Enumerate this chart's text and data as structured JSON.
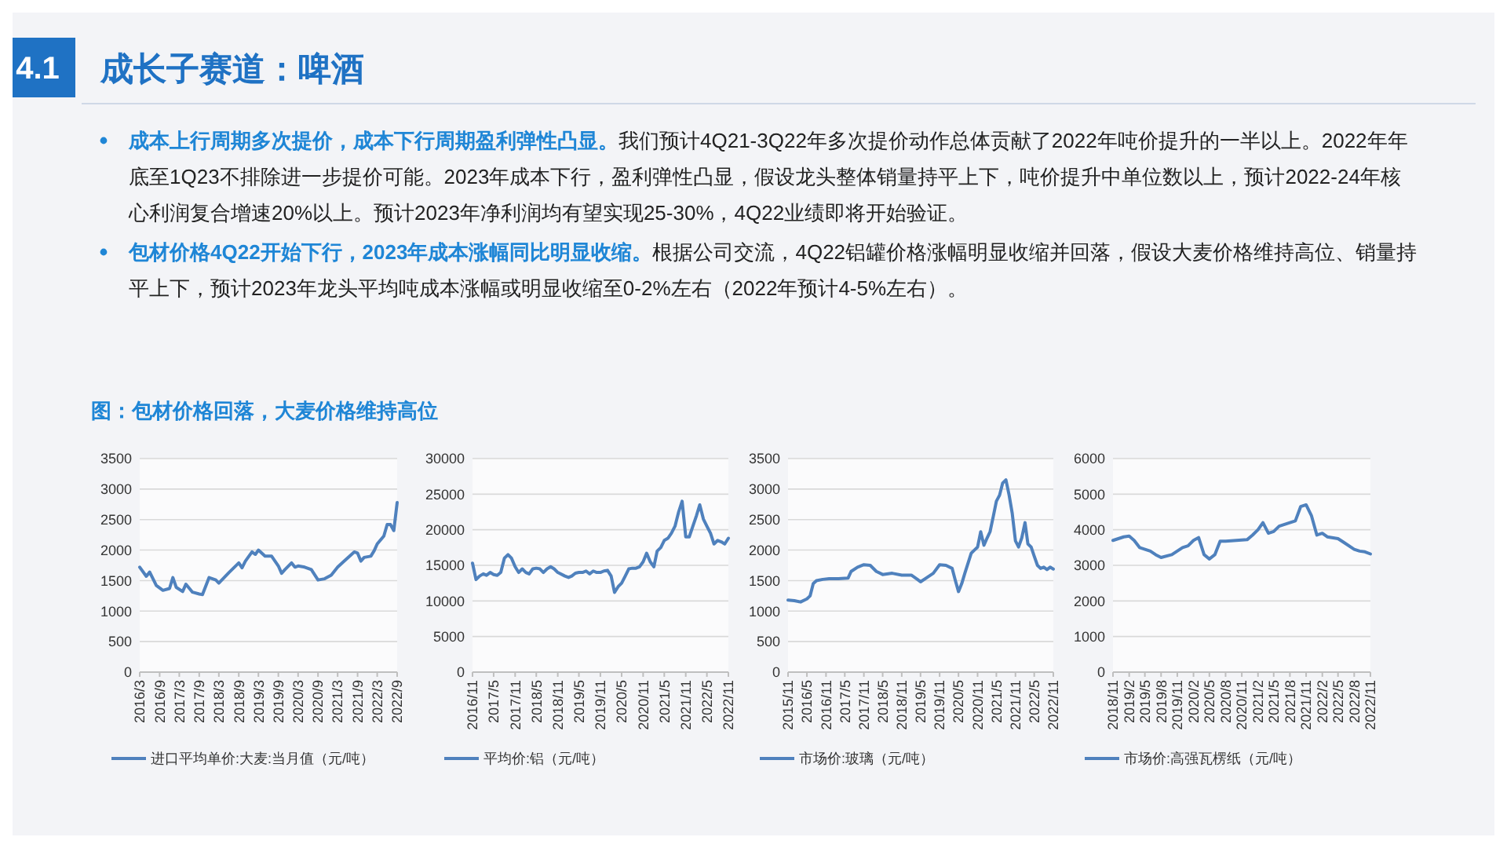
{
  "chart_data": [
    {
      "type": "other",
      "title": "成长子赛道：啤酒",
      "annotations": [
        "4.1",
        "成本上行周期多次提价，成本下行周期盈利弹性凸显。",
        "我们预计4Q21-3Q22年多次提价动作总体贡献了2022年吨价提升的一半以上。2022年年底至1Q23不排除进一步提价可能。2023年成本下行，盈利弹性凸显，假设龙头整体销量持平上下，吨价提升中单位数以上，预计2022-24年核心利润复合增速20%以上。预计2023年净利润均有望实现25-30%，4Q22业绩即将开始验证。",
        "包材价格4Q22开始下行，2023年成本涨幅同比明显收缩。",
        "根据公司交流，4Q22铝罐价格涨幅明显收缩并回落，假设大麦价格维持高位、销量持平上下，预计2023年龙头平均吨成本涨幅或明显收缩至0-2%左右（2022年预计4-5%左右）。",
        "图：包材价格回落，大麦价格维持高位"
      ]
    },
    {
      "type": "line",
      "x": [
        "2016-03",
        "2016-05",
        "2016-06",
        "2016-08",
        "2016-10",
        "2016-12",
        "2017-01",
        "2017-02",
        "2017-04",
        "2017-05",
        "2017-07",
        "2017-09",
        "2017-10",
        "2017-12",
        "2018-02",
        "2018-03",
        "2018-06",
        "2018-09",
        "2018-10",
        "2018-11",
        "2019-01",
        "2019-02",
        "2019-03",
        "2019-05",
        "2019-07",
        "2019-09",
        "2019-10",
        "2019-11",
        "2020-01",
        "2020-02",
        "2020-03",
        "2020-05",
        "2020-07",
        "2020-09",
        "2020-11",
        "2021-01",
        "2021-03",
        "2021-05",
        "2021-08",
        "2021-09",
        "2021-10",
        "2021-11",
        "2022-01",
        "2022-02",
        "2022-03",
        "2022-05",
        "2022-06",
        "2022-07",
        "2022-08",
        "2022-09"
      ],
      "series": [
        {
          "name": "进口平均单价:大麦:当月值（元/吨）",
          "color": "#4f81bd",
          "values": [
            1720,
            1570,
            1640,
            1420,
            1340,
            1370,
            1550,
            1390,
            1320,
            1440,
            1310,
            1280,
            1270,
            1550,
            1510,
            1460,
            1630,
            1790,
            1710,
            1820,
            1970,
            1930,
            2000,
            1900,
            1900,
            1740,
            1620,
            1680,
            1790,
            1720,
            1740,
            1720,
            1680,
            1510,
            1530,
            1590,
            1720,
            1820,
            1970,
            1950,
            1820,
            1880,
            1900,
            1990,
            2100,
            2230,
            2420,
            2420,
            2320,
            2780
          ]
        }
      ],
      "xlim": [
        "2016-03",
        "2022-09"
      ],
      "xticks": [
        {
          "value": "2016-03",
          "label": "2016/3"
        },
        {
          "value": "2016-09",
          "label": "2016/9"
        },
        {
          "value": "2017-03",
          "label": "2017/3"
        },
        {
          "value": "2017-09",
          "label": "2017/9"
        },
        {
          "value": "2018-03",
          "label": "2018/3"
        },
        {
          "value": "2018-09",
          "label": "2018/9"
        },
        {
          "value": "2019-03",
          "label": "2019/3"
        },
        {
          "value": "2019-09",
          "label": "2019/9"
        },
        {
          "value": "2020-03",
          "label": "2020/3"
        },
        {
          "value": "2020-09",
          "label": "2020/9"
        },
        {
          "value": "2021-03",
          "label": "2021/3"
        },
        {
          "value": "2021-09",
          "label": "2021/9"
        },
        {
          "value": "2022-03",
          "label": "2022/3"
        },
        {
          "value": "2022-09",
          "label": "2022/9"
        }
      ],
      "ylim": [
        0,
        3500
      ],
      "yticks": [
        0,
        500,
        1000,
        1500,
        2000,
        2500,
        3000,
        3500
      ],
      "grid": "y",
      "legend": "bottom"
    },
    {
      "type": "line",
      "x": [
        "2016-11",
        "2016-12",
        "2017-01",
        "2017-02",
        "2017-03",
        "2017-04",
        "2017-05",
        "2017-06",
        "2017-07",
        "2017-08",
        "2017-09",
        "2017-10",
        "2017-11",
        "2017-12",
        "2018-01",
        "2018-02",
        "2018-03",
        "2018-04",
        "2018-05",
        "2018-06",
        "2018-07",
        "2018-08",
        "2018-09",
        "2018-10",
        "2018-11",
        "2019-01",
        "2019-02",
        "2019-03",
        "2019-04",
        "2019-05",
        "2019-06",
        "2019-07",
        "2019-08",
        "2019-09",
        "2019-10",
        "2019-11",
        "2019-12",
        "2020-01",
        "2020-02",
        "2020-03",
        "2020-04",
        "2020-05",
        "2020-06",
        "2020-07",
        "2020-08",
        "2020-09",
        "2020-10",
        "2020-11",
        "2020-12",
        "2021-01",
        "2021-02",
        "2021-03",
        "2021-04",
        "2021-05",
        "2021-06",
        "2021-07",
        "2021-08",
        "2021-09",
        "2021-10",
        "2021-11",
        "2021-12",
        "2022-01",
        "2022-02",
        "2022-03",
        "2022-04",
        "2022-05",
        "2022-06",
        "2022-07",
        "2022-08",
        "2022-09",
        "2022-10",
        "2022-11"
      ],
      "series": [
        {
          "name": "平均价:铝（元/吨）",
          "color": "#4f81bd",
          "values": [
            15300,
            13000,
            13500,
            13800,
            13600,
            14000,
            13700,
            13600,
            14000,
            16000,
            16500,
            16000,
            14800,
            14000,
            14500,
            14000,
            13800,
            14500,
            14600,
            14500,
            14000,
            14500,
            14800,
            14500,
            14000,
            13500,
            13300,
            13500,
            13900,
            14000,
            14000,
            14200,
            13800,
            14200,
            14000,
            14000,
            14200,
            14300,
            13500,
            11200,
            12000,
            12500,
            13500,
            14500,
            14600,
            14600,
            14800,
            15500,
            16700,
            15500,
            14800,
            17000,
            17500,
            18500,
            18800,
            19500,
            20500,
            22500,
            24000,
            19000,
            19000,
            20500,
            22000,
            23500,
            21500,
            20500,
            19500,
            18000,
            18500,
            18300,
            18000,
            18800
          ]
        }
      ],
      "xlim": [
        "2016-11",
        "2022-11"
      ],
      "xticks": [
        {
          "value": "2016-11",
          "label": "2016/11"
        },
        {
          "value": "2017-05",
          "label": "2017/5"
        },
        {
          "value": "2017-11",
          "label": "2017/11"
        },
        {
          "value": "2018-05",
          "label": "2018/5"
        },
        {
          "value": "2018-11",
          "label": "2018/11"
        },
        {
          "value": "2019-05",
          "label": "2019/5"
        },
        {
          "value": "2019-11",
          "label": "2019/11"
        },
        {
          "value": "2020-05",
          "label": "2020/5"
        },
        {
          "value": "2020-11",
          "label": "2020/11"
        },
        {
          "value": "2021-05",
          "label": "2021/5"
        },
        {
          "value": "2021-11",
          "label": "2021/11"
        },
        {
          "value": "2022-05",
          "label": "2022/5"
        },
        {
          "value": "2022-11",
          "label": "2022/11"
        }
      ],
      "ylim": [
        0,
        30000
      ],
      "yticks": [
        0,
        5000,
        10000,
        15000,
        20000,
        25000,
        30000
      ],
      "grid": "y",
      "legend": "bottom"
    },
    {
      "type": "line",
      "x": [
        "2015-11",
        "2016-01",
        "2016-03",
        "2016-05",
        "2016-06",
        "2016-07",
        "2016-08",
        "2016-10",
        "2016-12",
        "2017-03",
        "2017-06",
        "2017-07",
        "2017-09",
        "2017-11",
        "2018-01",
        "2018-03",
        "2018-05",
        "2018-08",
        "2018-11",
        "2019-02",
        "2019-04",
        "2019-05",
        "2019-07",
        "2019-09",
        "2019-11",
        "2020-01",
        "2020-03",
        "2020-04",
        "2020-05",
        "2020-06",
        "2020-07",
        "2020-09",
        "2020-10",
        "2020-11",
        "2020-12",
        "2021-01",
        "2021-02",
        "2021-03",
        "2021-04",
        "2021-05",
        "2021-06",
        "2021-07",
        "2021-08",
        "2021-09",
        "2021-10",
        "2021-11",
        "2021-12",
        "2022-01",
        "2022-02",
        "2022-03",
        "2022-04",
        "2022-05",
        "2022-06",
        "2022-07",
        "2022-08",
        "2022-09",
        "2022-10",
        "2022-11"
      ],
      "series": [
        {
          "name": "市场价:玻璃（元/吨）",
          "color": "#4f81bd",
          "values": [
            1180,
            1170,
            1150,
            1200,
            1250,
            1450,
            1500,
            1520,
            1530,
            1530,
            1540,
            1650,
            1720,
            1760,
            1750,
            1650,
            1600,
            1620,
            1590,
            1590,
            1520,
            1480,
            1550,
            1620,
            1760,
            1750,
            1700,
            1500,
            1320,
            1450,
            1620,
            1950,
            2000,
            2050,
            2300,
            2080,
            2200,
            2300,
            2550,
            2800,
            2900,
            3100,
            3150,
            2900,
            2600,
            2150,
            2050,
            2200,
            2450,
            2100,
            2050,
            1900,
            1750,
            1700,
            1720,
            1680,
            1720,
            1690
          ]
        }
      ],
      "xlim": [
        "2015-11",
        "2022-11"
      ],
      "xticks": [
        {
          "value": "2015-11",
          "label": "2015/11"
        },
        {
          "value": "2016-05",
          "label": "2016/5"
        },
        {
          "value": "2016-11",
          "label": "2016/11"
        },
        {
          "value": "2017-05",
          "label": "2017/5"
        },
        {
          "value": "2017-11",
          "label": "2017/11"
        },
        {
          "value": "2018-05",
          "label": "2018/5"
        },
        {
          "value": "2018-11",
          "label": "2018/11"
        },
        {
          "value": "2019-05",
          "label": "2019/5"
        },
        {
          "value": "2019-11",
          "label": "2019/11"
        },
        {
          "value": "2020-05",
          "label": "2020/5"
        },
        {
          "value": "2020-11",
          "label": "2020/11"
        },
        {
          "value": "2021-05",
          "label": "2021/5"
        },
        {
          "value": "2021-11",
          "label": "2021/11"
        },
        {
          "value": "2022-05",
          "label": "2022/5"
        },
        {
          "value": "2022-11",
          "label": "2022/11"
        }
      ],
      "ylim": [
        0,
        3500
      ],
      "yticks": [
        0,
        500,
        1000,
        1500,
        2000,
        2500,
        3000,
        3500
      ],
      "grid": "y",
      "legend": "bottom"
    },
    {
      "type": "line",
      "x": [
        "2018-11",
        "2019-01",
        "2019-02",
        "2019-03",
        "2019-04",
        "2019-06",
        "2019-07",
        "2019-08",
        "2019-10",
        "2019-12",
        "2020-01",
        "2020-02",
        "2020-03",
        "2020-04",
        "2020-05",
        "2020-06",
        "2020-07",
        "2020-08",
        "2020-10",
        "2020-12",
        "2021-01",
        "2021-02",
        "2021-03",
        "2021-04",
        "2021-05",
        "2021-06",
        "2021-08",
        "2021-09",
        "2021-10",
        "2021-11",
        "2021-12",
        "2022-01",
        "2022-02",
        "2022-03",
        "2022-05",
        "2022-06",
        "2022-08",
        "2022-09",
        "2022-10",
        "2022-11"
      ],
      "series": [
        {
          "name": "市场价:高强瓦楞纸（元/吨）",
          "color": "#4f81bd",
          "values": [
            3700,
            3800,
            3820,
            3700,
            3500,
            3400,
            3300,
            3220,
            3300,
            3500,
            3550,
            3700,
            3780,
            3300,
            3180,
            3300,
            3680,
            3680,
            3700,
            3720,
            3850,
            4000,
            4200,
            3900,
            3950,
            4100,
            4200,
            4250,
            4650,
            4700,
            4400,
            3850,
            3900,
            3800,
            3750,
            3650,
            3450,
            3400,
            3380,
            3320
          ]
        }
      ],
      "xlim": [
        "2018-11",
        "2022-11"
      ],
      "xticks": [
        {
          "value": "2018-11",
          "label": "2018/11"
        },
        {
          "value": "2019-02",
          "label": "2019/2"
        },
        {
          "value": "2019-05",
          "label": "2019/5"
        },
        {
          "value": "2019-08",
          "label": "2019/8"
        },
        {
          "value": "2019-11",
          "label": "2019/11"
        },
        {
          "value": "2020-02",
          "label": "2020/2"
        },
        {
          "value": "2020-05",
          "label": "2020/5"
        },
        {
          "value": "2020-08",
          "label": "2020/8"
        },
        {
          "value": "2020-11",
          "label": "2020/11"
        },
        {
          "value": "2021-02",
          "label": "2021/2"
        },
        {
          "value": "2021-05",
          "label": "2021/5"
        },
        {
          "value": "2021-08",
          "label": "2021/8"
        },
        {
          "value": "2021-11",
          "label": "2021/11"
        },
        {
          "value": "2022-02",
          "label": "2022/2"
        },
        {
          "value": "2022-05",
          "label": "2022/5"
        },
        {
          "value": "2022-08",
          "label": "2022/8"
        },
        {
          "value": "2022-11",
          "label": "2022/11"
        }
      ],
      "ylim": [
        0,
        6000
      ],
      "yticks": [
        0,
        1000,
        2000,
        3000,
        4000,
        5000,
        6000
      ],
      "grid": "y",
      "legend": "bottom"
    }
  ]
}
